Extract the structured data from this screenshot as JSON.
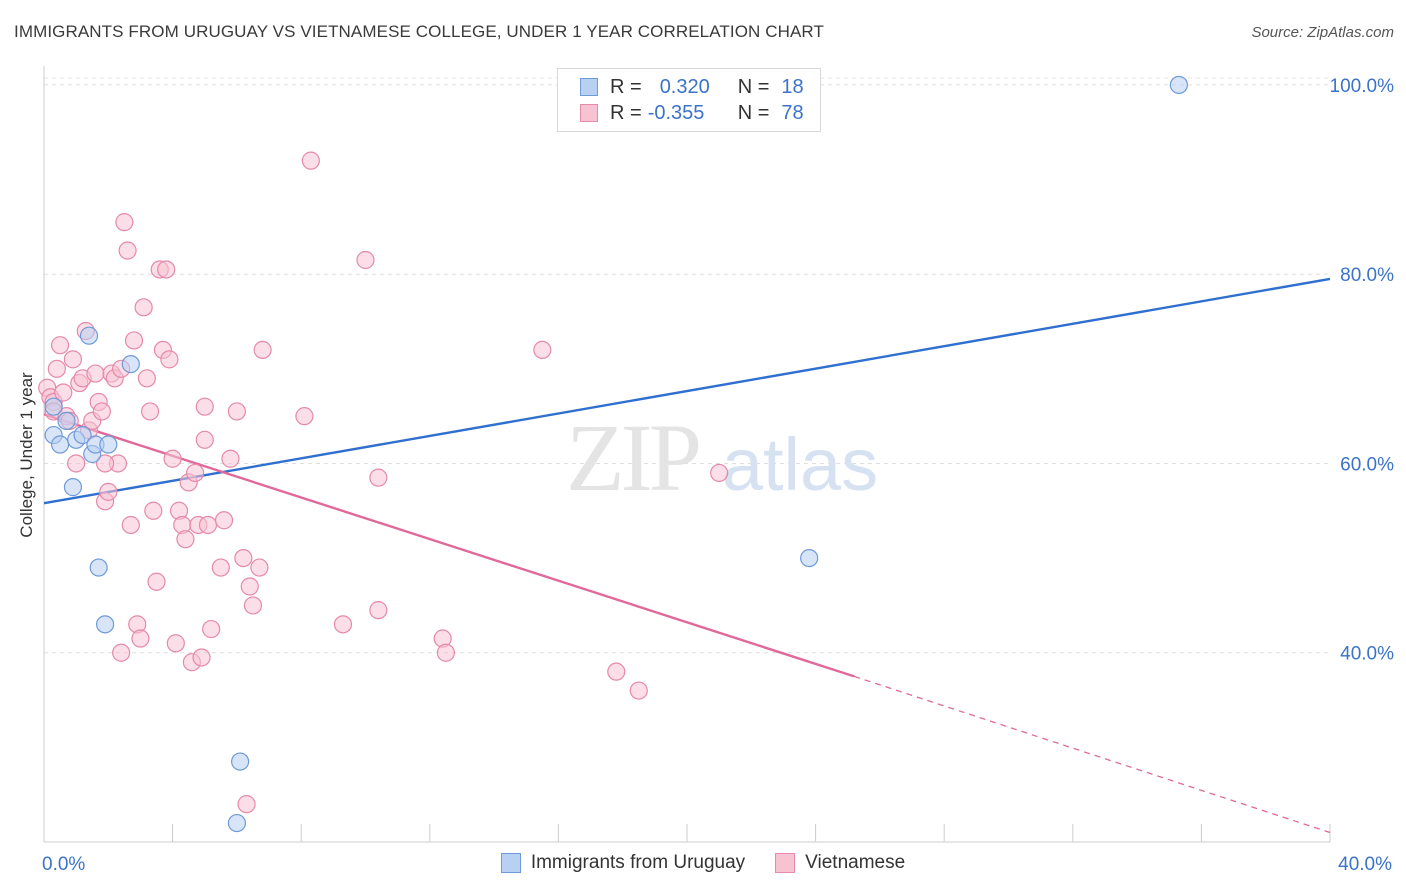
{
  "title": "IMMIGRANTS FROM URUGUAY VS VIETNAMESE COLLEGE, UNDER 1 YEAR CORRELATION CHART",
  "source": "Source: ZipAtlas.com",
  "watermark": {
    "zip": "ZIP",
    "atlas": "atlas"
  },
  "legend": {
    "r_label": "R =",
    "n_label": "N =",
    "uruguay": {
      "r": "0.320",
      "n": "18"
    },
    "vietnamese": {
      "r": "-0.355",
      "n": "78"
    }
  },
  "bottom_legend": {
    "uruguay": "Immigrants from Uruguay",
    "vietnamese": "Vietnamese"
  },
  "colors": {
    "uruguay_fill": "#b8d0f2",
    "uruguay_stroke": "#6f9ad8",
    "uruguay_line": "#2f6fcf",
    "vietnamese_fill": "#f7c3d3",
    "vietnamese_stroke": "#e58aa8",
    "vietnamese_line": "#e0699a",
    "axis_text": "#3b73c8"
  },
  "chart_data": {
    "type": "scatter",
    "title": "IMMIGRANTS FROM URUGUAY VS VIETNAMESE COLLEGE, UNDER 1 YEAR CORRELATION CHART",
    "xlabel": "",
    "ylabel": "College, Under 1 year",
    "xlim": [
      0,
      40
    ],
    "ylim": [
      20,
      102
    ],
    "x_ticks": [
      0,
      4,
      8,
      12,
      16,
      20,
      24,
      28,
      32,
      36,
      40
    ],
    "x_tick_labels": [
      {
        "value": 0,
        "label": "0.0%"
      },
      {
        "value": 40,
        "label": "40.0%"
      }
    ],
    "y_ticks": [
      {
        "value": 40,
        "label": "40.0%"
      },
      {
        "value": 60,
        "label": "60.0%"
      },
      {
        "value": 80,
        "label": "80.0%"
      },
      {
        "value": 100,
        "label": "100.0%"
      }
    ],
    "series": [
      {
        "name": "Immigrants from Uruguay",
        "points": [
          [
            0.3,
            66.0
          ],
          [
            0.3,
            63.0
          ],
          [
            0.5,
            62.0
          ],
          [
            0.7,
            64.5
          ],
          [
            0.9,
            57.5
          ],
          [
            1.0,
            62.5
          ],
          [
            1.2,
            63.0
          ],
          [
            1.4,
            73.5
          ],
          [
            1.5,
            61.0
          ],
          [
            1.6,
            62.0
          ],
          [
            1.7,
            49.0
          ],
          [
            2.0,
            62.0
          ],
          [
            1.9,
            43.0
          ],
          [
            2.7,
            70.5
          ],
          [
            6.1,
            28.5
          ],
          [
            6.0,
            22.0
          ],
          [
            23.8,
            50.0
          ],
          [
            35.3,
            100.0
          ]
        ],
        "trend": {
          "x": [
            0,
            40
          ],
          "y": [
            55.8,
            79.5
          ]
        }
      },
      {
        "name": "Vietnamese",
        "points": [
          [
            0.1,
            68.0
          ],
          [
            0.2,
            67.0
          ],
          [
            0.3,
            66.5
          ],
          [
            0.3,
            65.5
          ],
          [
            0.4,
            70.0
          ],
          [
            0.5,
            72.5
          ],
          [
            0.6,
            67.5
          ],
          [
            0.7,
            65.0
          ],
          [
            0.8,
            64.5
          ],
          [
            0.9,
            71.0
          ],
          [
            1.0,
            60.0
          ],
          [
            1.1,
            68.5
          ],
          [
            1.2,
            69.0
          ],
          [
            1.3,
            74.0
          ],
          [
            1.4,
            63.5
          ],
          [
            1.5,
            64.5
          ],
          [
            1.6,
            69.5
          ],
          [
            1.7,
            66.5
          ],
          [
            1.8,
            65.5
          ],
          [
            1.9,
            56.0
          ],
          [
            2.0,
            57.0
          ],
          [
            2.1,
            69.5
          ],
          [
            2.2,
            69.0
          ],
          [
            2.3,
            60.0
          ],
          [
            2.4,
            70.0
          ],
          [
            2.5,
            85.5
          ],
          [
            2.6,
            82.5
          ],
          [
            2.7,
            53.5
          ],
          [
            2.8,
            73.0
          ],
          [
            2.9,
            43.0
          ],
          [
            3.0,
            41.5
          ],
          [
            3.1,
            76.5
          ],
          [
            3.2,
            69.0
          ],
          [
            3.3,
            65.5
          ],
          [
            3.4,
            55.0
          ],
          [
            3.5,
            47.5
          ],
          [
            3.6,
            80.5
          ],
          [
            3.7,
            72.0
          ],
          [
            3.8,
            80.5
          ],
          [
            3.9,
            71.0
          ],
          [
            4.0,
            60.5
          ],
          [
            4.1,
            41.0
          ],
          [
            4.2,
            55.0
          ],
          [
            4.3,
            53.5
          ],
          [
            4.4,
            52.0
          ],
          [
            4.5,
            58.0
          ],
          [
            4.6,
            39.0
          ],
          [
            4.7,
            59.0
          ],
          [
            4.8,
            53.5
          ],
          [
            4.9,
            39.5
          ],
          [
            5.0,
            62.5
          ],
          [
            5.1,
            53.5
          ],
          [
            5.2,
            42.5
          ],
          [
            5.5,
            49.0
          ],
          [
            5.6,
            54.0
          ],
          [
            5.8,
            60.5
          ],
          [
            6.0,
            65.5
          ],
          [
            6.2,
            50.0
          ],
          [
            6.4,
            47.0
          ],
          [
            6.5,
            45.0
          ],
          [
            6.7,
            49.0
          ],
          [
            6.8,
            72.0
          ],
          [
            6.3,
            24.0
          ],
          [
            2.4,
            40.0
          ],
          [
            8.3,
            92.0
          ],
          [
            8.1,
            65.0
          ],
          [
            9.3,
            43.0
          ],
          [
            10.0,
            81.5
          ],
          [
            10.4,
            58.5
          ],
          [
            10.4,
            44.5
          ],
          [
            12.4,
            41.5
          ],
          [
            12.5,
            40.0
          ],
          [
            15.5,
            72.0
          ],
          [
            17.8,
            38.0
          ],
          [
            18.5,
            36.0
          ],
          [
            21.0,
            59.0
          ],
          [
            1.9,
            60.0
          ],
          [
            5.0,
            66.0
          ]
        ],
        "trend": {
          "x": [
            0,
            25.2
          ],
          "y": [
            65.2,
            37.5
          ]
        },
        "trend_dashed": {
          "x": [
            25.2,
            40
          ],
          "y": [
            37.5,
            21.0
          ]
        }
      }
    ]
  }
}
